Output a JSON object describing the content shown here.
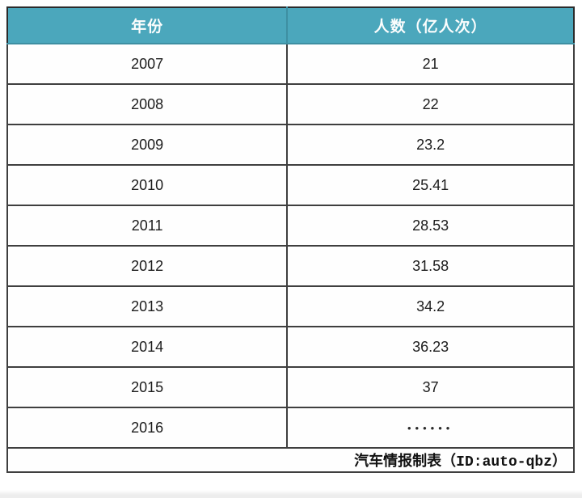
{
  "colors": {
    "header_bg": "#4BA7BC",
    "header_text": "#FBFDFD",
    "border": "#3F3F3F",
    "row_text": "#1C1C1C"
  },
  "table": {
    "headers": [
      "年份",
      "人数（亿人次）"
    ],
    "rows": [
      {
        "year": "2007",
        "value": "21"
      },
      {
        "year": "2008",
        "value": "22"
      },
      {
        "year": "2009",
        "value": "23.2"
      },
      {
        "year": "2010",
        "value": "25.41"
      },
      {
        "year": "2011",
        "value": "28.53"
      },
      {
        "year": "2012",
        "value": "31.58"
      },
      {
        "year": "2013",
        "value": "34.2"
      },
      {
        "year": "2014",
        "value": "36.23"
      },
      {
        "year": "2015",
        "value": "37"
      },
      {
        "year": "2016",
        "value": "••••••"
      }
    ],
    "footer": "汽车情报制表（ID:auto-qbz）"
  },
  "chart_data": {
    "type": "table",
    "title": "",
    "columns": [
      "年份",
      "人数（亿人次）"
    ],
    "categories": [
      "2007",
      "2008",
      "2009",
      "2010",
      "2011",
      "2012",
      "2013",
      "2014",
      "2015",
      "2016"
    ],
    "values": [
      21,
      22,
      23.2,
      25.41,
      28.53,
      31.58,
      34.2,
      36.23,
      37,
      "……"
    ],
    "source_credit": "汽车情报制表（ID:auto-qbz）"
  }
}
